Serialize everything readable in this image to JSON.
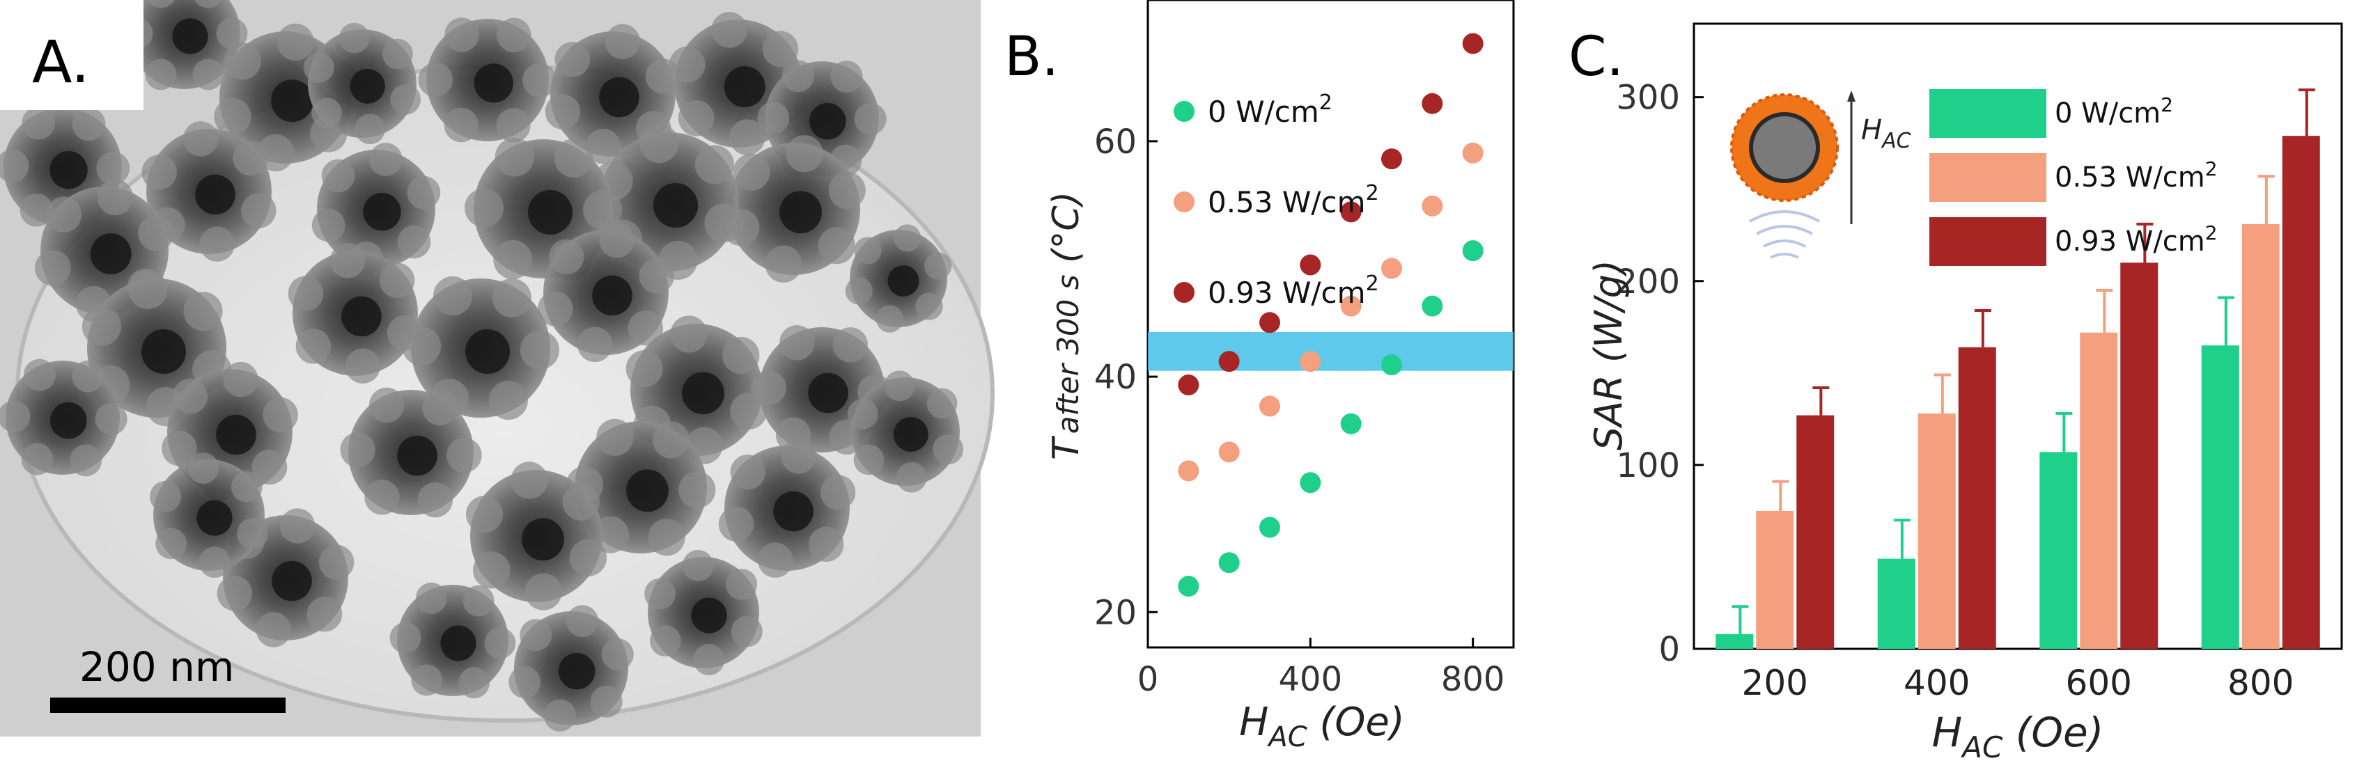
{
  "panel_a": {
    "label": "A.",
    "scale_bar_label": "200 nm"
  },
  "chart_data": [
    {
      "type": "scatter",
      "panel_label": "B.",
      "title": "",
      "xlabel_main": "H",
      "xlabel_sub": "AC",
      "xlabel_unit": " (Oe)",
      "ylabel_main": "T",
      "ylabel_sub": "after 300 s",
      "ylabel_unit": " (°C)",
      "xlim": [
        0,
        900
      ],
      "ylim": [
        17,
        72
      ],
      "xticks": [
        0,
        400,
        800
      ],
      "yticks": [
        20,
        40,
        60
      ],
      "highlight_band": {
        "y_min": 40.5,
        "y_max": 43.8,
        "color": "#4cc3e8"
      },
      "legend_position": "top-left",
      "series": [
        {
          "name": "0 W/cm",
          "sup": "2",
          "color": "#1ed08a",
          "x": [
            100,
            200,
            300,
            400,
            500,
            600,
            700,
            800
          ],
          "y": [
            22.2,
            24.2,
            27.2,
            31.0,
            36.0,
            41.0,
            46.0,
            50.7
          ]
        },
        {
          "name": "0.53 W/cm",
          "sup": "2",
          "color": "#f4a07e",
          "x": [
            100,
            200,
            300,
            400,
            500,
            600,
            700,
            800
          ],
          "y": [
            32.0,
            33.6,
            37.5,
            41.3,
            46.0,
            49.2,
            54.5,
            59.0
          ]
        },
        {
          "name": "0.93 W/cm",
          "sup": "2",
          "color": "#a82525",
          "x": [
            100,
            200,
            300,
            400,
            500,
            600,
            700,
            800
          ],
          "y": [
            39.3,
            41.3,
            44.6,
            49.5,
            54.0,
            58.5,
            63.2,
            68.3
          ]
        }
      ]
    },
    {
      "type": "bar",
      "panel_label": "C.",
      "title": "",
      "xlabel_main": "H",
      "xlabel_sub": "AC",
      "xlabel_unit": " (Oe)",
      "ylabel": "SAR (W/g)",
      "ylim": [
        0,
        340
      ],
      "yticks": [
        0,
        100,
        200,
        300
      ],
      "categories": [
        "200",
        "400",
        "600",
        "800"
      ],
      "legend_position": "top-right",
      "inset_field_label_main": "H",
      "inset_field_label_sub": "AC",
      "series": [
        {
          "name": "0 W/cm",
          "sup": "2",
          "color": "#1ed08a",
          "values": [
            8,
            49,
            107,
            165
          ],
          "errors": [
            15,
            21,
            21,
            26
          ]
        },
        {
          "name": "0.53 W/cm",
          "sup": "2",
          "color": "#f4a07e",
          "values": [
            75,
            128,
            172,
            231
          ],
          "errors": [
            16,
            21,
            23,
            26
          ]
        },
        {
          "name": "0.93 W/cm",
          "sup": "2",
          "color": "#a82525",
          "values": [
            127,
            164,
            210,
            279
          ],
          "errors": [
            15,
            20,
            21,
            25
          ]
        }
      ]
    }
  ]
}
